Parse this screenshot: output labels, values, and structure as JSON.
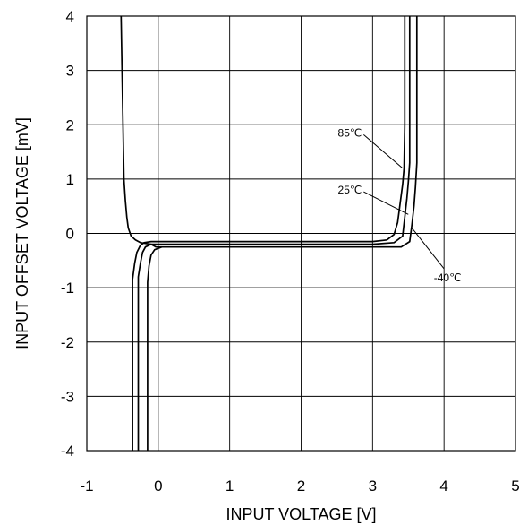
{
  "chart_data": {
    "type": "line",
    "title": "",
    "xlabel": "INPUT VOLTAGE [V]",
    "ylabel": "INPUT OFFSET VOLTAGE [mV]",
    "xlim": [
      -1,
      5
    ],
    "ylim": [
      -4,
      4
    ],
    "x_ticks": [
      "-1",
      "0",
      "1",
      "2",
      "3",
      "4",
      "5"
    ],
    "y_ticks": [
      "4",
      "3",
      "2",
      "1",
      "0",
      "-1",
      "-2",
      "-3",
      "-4"
    ],
    "grid": true,
    "legend": "none",
    "series": [
      {
        "name": "85℃",
        "x": [
          -0.36,
          -0.36,
          -0.33,
          -0.3,
          -0.25,
          -0.2,
          -0.1,
          1.0,
          2.0,
          3.0,
          3.2,
          3.3,
          3.35,
          3.38,
          3.42,
          3.44,
          3.45,
          3.45
        ],
        "y": [
          -4.0,
          -0.85,
          -0.55,
          -0.35,
          -0.22,
          -0.17,
          -0.15,
          -0.15,
          -0.15,
          -0.15,
          -0.12,
          -0.02,
          0.2,
          0.5,
          0.9,
          1.2,
          2.0,
          4.0
        ]
      },
      {
        "name": "25℃",
        "x": [
          -0.28,
          -0.28,
          -0.25,
          -0.22,
          -0.18,
          -0.1,
          0.0,
          1.0,
          2.0,
          3.0,
          3.3,
          3.42,
          3.45,
          3.48,
          3.5,
          3.52,
          3.52
        ],
        "y": [
          -4.0,
          -0.8,
          -0.55,
          -0.35,
          -0.25,
          -0.2,
          -0.2,
          -0.2,
          -0.2,
          -0.2,
          -0.17,
          -0.05,
          0.3,
          0.65,
          0.95,
          1.3,
          4.0
        ]
      },
      {
        "name": "-40℃",
        "x": [
          -0.52,
          -0.48,
          -0.46,
          -0.44,
          -0.42,
          -0.38,
          -0.32,
          -0.25,
          -0.1,
          -0.03,
          1.0,
          2.0,
          3.0,
          3.4,
          3.52,
          3.55,
          3.58,
          3.6,
          3.62,
          3.62
        ],
        "y": [
          4.0,
          1.0,
          0.6,
          0.3,
          0.1,
          -0.05,
          -0.12,
          -0.17,
          -0.2,
          -0.25,
          -0.25,
          -0.25,
          -0.25,
          -0.25,
          -0.15,
          0.15,
          0.5,
          0.85,
          1.3,
          4.0
        ]
      },
      {
        "name": "",
        "x": [
          -0.15,
          -0.15,
          -0.13,
          -0.1,
          -0.05,
          0.05
        ],
        "y": [
          -4.0,
          -0.9,
          -0.6,
          -0.4,
          -0.3,
          -0.25
        ]
      }
    ],
    "annotations": [
      {
        "text": "85℃",
        "at": [
          3.42,
          1.2
        ],
        "label_pos": [
          2.85,
          1.75
        ]
      },
      {
        "text": "25℃",
        "at": [
          3.5,
          0.35
        ],
        "label_pos": [
          2.85,
          0.7
        ]
      },
      {
        "text": "-40℃",
        "at": [
          3.55,
          0.1
        ],
        "label_pos": [
          4.05,
          -0.65
        ]
      }
    ]
  }
}
